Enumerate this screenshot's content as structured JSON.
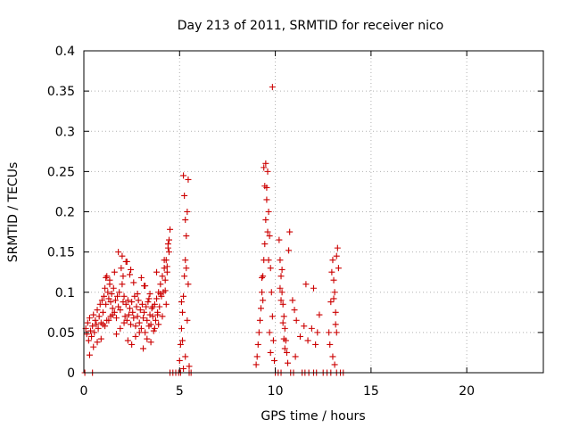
{
  "chart_data": {
    "type": "scatter",
    "title": "Day 213 of 2011, SRMTID for receiver nico",
    "xlabel": "GPS time / hours",
    "ylabel": "SRMTID / TECUs",
    "xlim": [
      0,
      24
    ],
    "ylim": [
      0,
      0.4
    ],
    "x_ticks": [
      0,
      5,
      10,
      15,
      20
    ],
    "x_tick_labels": [
      "0",
      "5",
      "10",
      "15",
      "20"
    ],
    "y_ticks": [
      0,
      0.05,
      0.1,
      0.15,
      0.2,
      0.25,
      0.3,
      0.35,
      0.4
    ],
    "y_tick_labels": [
      "0",
      "0.05",
      "0.1",
      "0.15",
      "0.2",
      "0.25",
      "0.3",
      "0.35",
      "0.4"
    ],
    "grid": true,
    "marker": "+",
    "series_color": "#cc0000",
    "series": [
      {
        "name": "SRMTID",
        "x": [
          0.1,
          0.15,
          0.2,
          0.25,
          0.3,
          0.35,
          0.4,
          0.45,
          0.5,
          0.55,
          0.6,
          0.65,
          0.7,
          0.75,
          0.8,
          0.85,
          0.9,
          0.95,
          1.0,
          1.05,
          1.1,
          1.15,
          1.2,
          1.25,
          1.3,
          1.35,
          1.4,
          1.45,
          1.5,
          1.55,
          1.6,
          1.65,
          1.7,
          1.75,
          1.8,
          1.85,
          1.9,
          1.95,
          2.0,
          2.05,
          2.1,
          2.15,
          2.2,
          2.25,
          2.3,
          2.35,
          2.4,
          2.45,
          2.5,
          2.55,
          2.6,
          2.65,
          2.7,
          2.75,
          2.8,
          2.85,
          2.9,
          2.95,
          3.0,
          3.05,
          3.1,
          3.15,
          3.2,
          3.25,
          3.3,
          3.35,
          3.4,
          3.45,
          3.5,
          3.55,
          3.6,
          3.65,
          3.7,
          3.75,
          3.8,
          3.85,
          3.9,
          3.95,
          4.0,
          4.05,
          4.1,
          4.15,
          4.2,
          4.25,
          4.3,
          4.35,
          4.4,
          4.45,
          4.5,
          0.3,
          0.5,
          0.7,
          0.9,
          1.1,
          1.3,
          1.5,
          1.7,
          1.9,
          2.1,
          2.3,
          2.5,
          2.7,
          2.9,
          3.1,
          3.3,
          3.5,
          3.7,
          3.9,
          4.1,
          4.3,
          1.0,
          1.2,
          1.4,
          1.6,
          1.8,
          2.0,
          2.2,
          2.4,
          2.6,
          2.8,
          3.0,
          3.2,
          3.4,
          3.6,
          3.8,
          4.0,
          4.2,
          4.4,
          1.15,
          1.35,
          2.05,
          2.25,
          2.45,
          3.15,
          3.45,
          3.85,
          4.25,
          4.35,
          4.45,
          5.0,
          5.05,
          5.1,
          5.15,
          5.2,
          5.25,
          5.3,
          5.35,
          5.4,
          5.45,
          5.5,
          5.2,
          5.25,
          5.3,
          5.35,
          5.15,
          5.4,
          5.1,
          5.45,
          5.3,
          5.2,
          9.0,
          9.05,
          9.1,
          9.15,
          9.2,
          9.25,
          9.3,
          9.35,
          9.4,
          9.45,
          9.5,
          9.55,
          9.6,
          9.65,
          9.7,
          9.75,
          9.8,
          9.85,
          9.9,
          9.95,
          9.4,
          9.45,
          9.5,
          9.55,
          9.3,
          9.6,
          9.65,
          9.35,
          9.7,
          9.75,
          9.85,
          10.2,
          10.25,
          10.3,
          10.35,
          10.4,
          10.45,
          10.5,
          10.55,
          10.6,
          10.65,
          10.7,
          10.75,
          10.3,
          10.35,
          10.4,
          10.45,
          10.5,
          10.25,
          10.9,
          11.0,
          11.1,
          11.3,
          11.5,
          11.7,
          11.9,
          12.1,
          12.3,
          11.05,
          11.6,
          12.0,
          12.2,
          12.8,
          12.9,
          12.95,
          13.0,
          13.05,
          13.1,
          13.15,
          13.2,
          13.25,
          13.3,
          12.85,
          13.0,
          13.1,
          13.2,
          13.05,
          13.15,
          0.05,
          0.45,
          4.5,
          4.65,
          4.8,
          4.95,
          5.05,
          5.5,
          5.6,
          10.0,
          10.15,
          10.3,
          10.8,
          10.95,
          11.4,
          11.55,
          11.75,
          12.0,
          12.15,
          12.5,
          12.7,
          12.9,
          13.2,
          13.4,
          13.55
        ],
        "y": [
          0.055,
          0.048,
          0.062,
          0.04,
          0.068,
          0.052,
          0.045,
          0.058,
          0.072,
          0.05,
          0.065,
          0.06,
          0.078,
          0.055,
          0.07,
          0.085,
          0.062,
          0.09,
          0.075,
          0.095,
          0.105,
          0.085,
          0.12,
          0.1,
          0.092,
          0.11,
          0.088,
          0.098,
          0.08,
          0.105,
          0.075,
          0.09,
          0.068,
          0.095,
          0.082,
          0.1,
          0.078,
          0.13,
          0.11,
          0.088,
          0.095,
          0.07,
          0.085,
          0.065,
          0.09,
          0.072,
          0.08,
          0.06,
          0.088,
          0.075,
          0.068,
          0.095,
          0.058,
          0.082,
          0.07,
          0.09,
          0.062,
          0.078,
          0.055,
          0.085,
          0.068,
          0.075,
          0.05,
          0.082,
          0.065,
          0.088,
          0.058,
          0.072,
          0.06,
          0.08,
          0.07,
          0.052,
          0.085,
          0.065,
          0.092,
          0.075,
          0.1,
          0.082,
          0.11,
          0.095,
          0.12,
          0.1,
          0.13,
          0.115,
          0.14,
          0.125,
          0.155,
          0.165,
          0.178,
          0.022,
          0.032,
          0.038,
          0.042,
          0.058,
          0.065,
          0.072,
          0.048,
          0.055,
          0.062,
          0.04,
          0.035,
          0.045,
          0.05,
          0.03,
          0.042,
          0.038,
          0.055,
          0.06,
          0.07,
          0.085,
          0.06,
          0.065,
          0.07,
          0.125,
          0.15,
          0.145,
          0.138,
          0.122,
          0.112,
          0.098,
          0.118,
          0.108,
          0.092,
          0.082,
          0.125,
          0.098,
          0.14,
          0.16,
          0.118,
          0.115,
          0.12,
          0.138,
          0.128,
          0.108,
          0.098,
          0.072,
          0.102,
          0.132,
          0.15,
          0.015,
          0.035,
          0.055,
          0.075,
          0.095,
          0.12,
          0.14,
          0.17,
          0.2,
          0.24,
          0.008,
          0.245,
          0.22,
          0.19,
          0.13,
          0.04,
          0.065,
          0.088,
          0.11,
          0.02,
          0.005,
          0.01,
          0.02,
          0.035,
          0.05,
          0.065,
          0.08,
          0.1,
          0.12,
          0.14,
          0.16,
          0.19,
          0.23,
          0.25,
          0.2,
          0.17,
          0.13,
          0.1,
          0.07,
          0.04,
          0.015,
          0.255,
          0.232,
          0.26,
          0.215,
          0.118,
          0.175,
          0.14,
          0.09,
          0.05,
          0.025,
          0.355,
          0.165,
          0.14,
          0.12,
          0.1,
          0.085,
          0.07,
          0.055,
          0.04,
          0.025,
          0.012,
          0.152,
          0.175,
          0.09,
          0.128,
          0.062,
          0.042,
          0.03,
          0.105,
          0.09,
          0.078,
          0.065,
          0.045,
          0.058,
          0.04,
          0.055,
          0.035,
          0.072,
          0.02,
          0.11,
          0.105,
          0.05,
          0.05,
          0.088,
          0.125,
          0.14,
          0.115,
          0.1,
          0.075,
          0.05,
          0.155,
          0.13,
          0.035,
          0.02,
          0.01,
          0.145,
          0.092,
          0.06,
          0,
          0,
          0,
          0,
          0,
          0,
          0,
          0,
          0,
          0,
          0,
          0,
          0,
          0,
          0,
          0,
          0,
          0,
          0,
          0,
          0,
          0,
          0,
          0,
          0
        ]
      }
    ]
  }
}
